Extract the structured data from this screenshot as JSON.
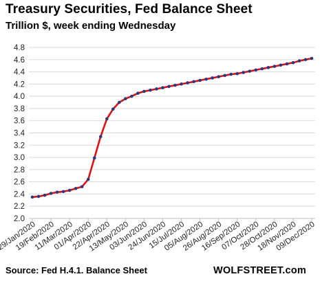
{
  "chart_data": {
    "type": "line",
    "title": "Treasury Securities, Fed Balance Sheet",
    "subtitle": "Trillion $, week ending Wednesday",
    "xlabel": "",
    "ylabel": "",
    "ylim": [
      2.0,
      4.8
    ],
    "yticks": [
      "2.0",
      "2.2",
      "2.4",
      "2.6",
      "2.8",
      "3.0",
      "3.2",
      "3.4",
      "3.6",
      "3.8",
      "4.0",
      "4.2",
      "4.4",
      "4.6",
      "4.8"
    ],
    "grid": true,
    "legend": "none",
    "x_tick_labels": [
      "29/Jan/2020",
      "19/Feb/2020",
      "11/Mar/2020",
      "01/Apr/2020",
      "22/Apr/2020",
      "13/May/2020",
      "03/Jun/2020",
      "24/Jun/2020",
      "15/Jul/2020",
      "05/Aug/2020",
      "26/Aug/2020",
      "16/Sep/2020",
      "07/Oct/2020",
      "28/Oct/2020",
      "18/Nov/2020",
      "09/Dec/2020"
    ],
    "series": [
      {
        "name": "",
        "color": "#e01010",
        "marker_color": "#2b3a80",
        "x": [
          "29/Jan/2020",
          "05/Feb/2020",
          "12/Feb/2020",
          "19/Feb/2020",
          "26/Feb/2020",
          "04/Mar/2020",
          "11/Mar/2020",
          "18/Mar/2020",
          "25/Mar/2020",
          "01/Apr/2020",
          "08/Apr/2020",
          "15/Apr/2020",
          "22/Apr/2020",
          "29/Apr/2020",
          "06/May/2020",
          "13/May/2020",
          "20/May/2020",
          "27/May/2020",
          "03/Jun/2020",
          "10/Jun/2020",
          "17/Jun/2020",
          "24/Jun/2020",
          "01/Jul/2020",
          "08/Jul/2020",
          "15/Jul/2020",
          "22/Jul/2020",
          "29/Jul/2020",
          "05/Aug/2020",
          "12/Aug/2020",
          "19/Aug/2020",
          "26/Aug/2020",
          "02/Sep/2020",
          "09/Sep/2020",
          "16/Sep/2020",
          "23/Sep/2020",
          "30/Sep/2020",
          "07/Oct/2020",
          "14/Oct/2020",
          "21/Oct/2020",
          "28/Oct/2020",
          "04/Nov/2020",
          "11/Nov/2020",
          "18/Nov/2020",
          "25/Nov/2020",
          "02/Dec/2020",
          "09/Dec/2020"
        ],
        "values": [
          2.35,
          2.36,
          2.38,
          2.41,
          2.43,
          2.44,
          2.46,
          2.49,
          2.52,
          2.64,
          2.99,
          3.34,
          3.63,
          3.79,
          3.9,
          3.96,
          4.0,
          4.05,
          4.08,
          4.1,
          4.12,
          4.14,
          4.16,
          4.18,
          4.2,
          4.22,
          4.24,
          4.26,
          4.28,
          4.3,
          4.32,
          4.34,
          4.36,
          4.37,
          4.39,
          4.41,
          4.43,
          4.45,
          4.47,
          4.49,
          4.51,
          4.53,
          4.55,
          4.58,
          4.6,
          4.62
        ]
      }
    ]
  },
  "footer": {
    "source": "Source: Fed H.4.1. Balance Sheet",
    "brand": "WOLFSTREET.com"
  }
}
